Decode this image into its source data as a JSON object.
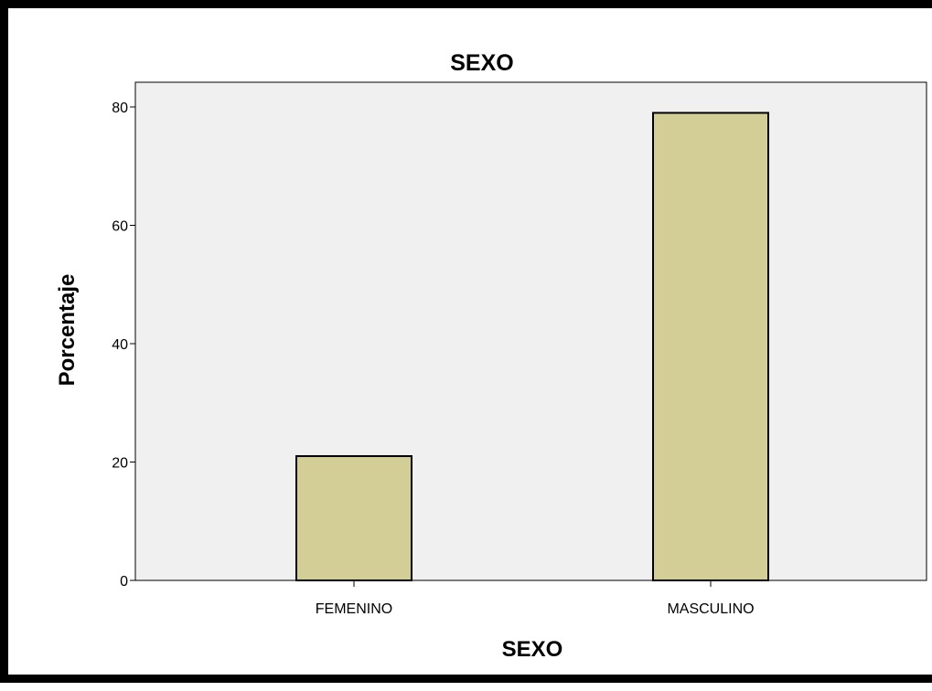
{
  "chart_data": {
    "type": "bar",
    "title": "SEXO",
    "xlabel": "SEXO",
    "ylabel": "Porcentaje",
    "categories": [
      "FEMENINO",
      "MASCULINO"
    ],
    "values": [
      21,
      79
    ],
    "ylim": [
      0,
      80
    ],
    "yticks": [
      0,
      20,
      40,
      60,
      80
    ],
    "grid": false,
    "colors": {
      "bar_fill": "#d3cd96",
      "plot_background": "#f0f0f0",
      "bar_stroke": "#000000"
    }
  }
}
